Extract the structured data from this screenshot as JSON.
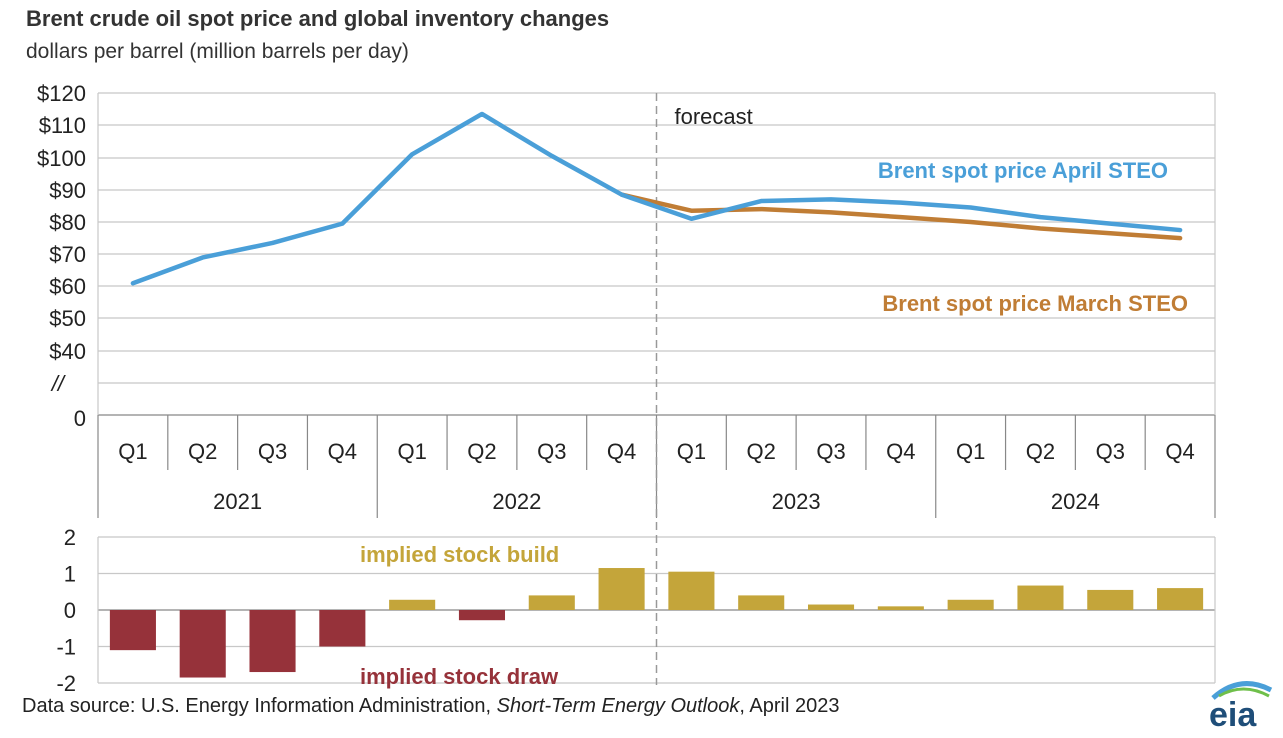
{
  "title": "Brent crude oil spot price and global inventory changes",
  "subtitle": "dollars per barrel (million barrels per day)",
  "source": {
    "prefix": "Data source: U.S. Energy Information Administration, ",
    "report": "Short-Term Energy Outlook",
    "suffix": ", April 2023"
  },
  "logo_text": "eia",
  "colors": {
    "april": "#4a9fd8",
    "march": "#c07d35",
    "build": "#c4a53a",
    "draw": "#96323a",
    "grid": "#c8c8c8",
    "axis": "#888888"
  },
  "chart_data": [
    {
      "type": "line",
      "categories": [
        "Q1",
        "Q2",
        "Q3",
        "Q4",
        "Q1",
        "Q2",
        "Q3",
        "Q4",
        "Q1",
        "Q2",
        "Q3",
        "Q4",
        "Q1",
        "Q2",
        "Q3",
        "Q4"
      ],
      "years": [
        "2021",
        "2022",
        "2023",
        "2024"
      ],
      "y_ticks": [
        "$120",
        "$110",
        "$100",
        "$90",
        "$80",
        "$70",
        "$60",
        "$50",
        "$40",
        "//",
        "0"
      ],
      "ylim": [
        40,
        120
      ],
      "axis_break": true,
      "forecast_label": "forecast",
      "forecast_start_index": 8,
      "series": [
        {
          "name": "Brent spot price April STEO",
          "values": [
            61,
            69,
            73.5,
            79.5,
            101,
            113.5,
            100.5,
            88.5,
            81,
            86.5,
            87,
            86,
            84.5,
            81.5,
            79.5,
            77.5
          ]
        },
        {
          "name": "Brent spot price March STEO",
          "values": [
            null,
            null,
            null,
            null,
            null,
            null,
            null,
            88.5,
            83.5,
            84,
            83,
            81.5,
            80,
            78,
            76.5,
            75
          ]
        }
      ]
    },
    {
      "type": "bar",
      "categories": [
        "Q1",
        "Q2",
        "Q3",
        "Q4",
        "Q1",
        "Q2",
        "Q3",
        "Q4",
        "Q1",
        "Q2",
        "Q3",
        "Q4",
        "Q1",
        "Q2",
        "Q3",
        "Q4"
      ],
      "values": [
        -1.1,
        -1.85,
        -1.7,
        -1.0,
        0.28,
        -0.28,
        0.4,
        1.15,
        1.05,
        0.4,
        0.15,
        0.1,
        0.28,
        0.67,
        0.55,
        0.6
      ],
      "y_ticks": [
        "2",
        "1",
        "0",
        "-1",
        "-2"
      ],
      "ylim": [
        -2,
        2
      ],
      "build_label": "implied stock  build",
      "draw_label": "implied stock draw"
    }
  ]
}
